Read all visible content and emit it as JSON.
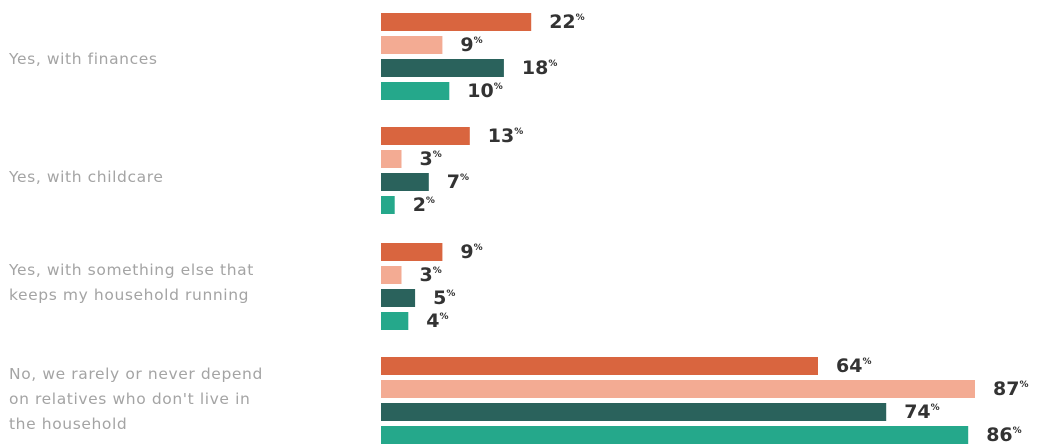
{
  "chart_data": {
    "type": "bar",
    "orientation": "horizontal",
    "categories": [
      [
        "Yes, with finances"
      ],
      [
        "Yes, with childcare"
      ],
      [
        "Yes, with something else that",
        "keeps my household running"
      ],
      [
        "No, we rarely or never depend",
        "on relatives who don't live in",
        "the household"
      ]
    ],
    "series": [
      {
        "color": "#d9653f",
        "values": [
          22,
          13,
          9,
          64
        ]
      },
      {
        "color": "#f3ab93",
        "values": [
          9,
          3,
          3,
          87
        ]
      },
      {
        "color": "#2a625c",
        "values": [
          18,
          7,
          5,
          74
        ]
      },
      {
        "color": "#25a88b",
        "values": [
          10,
          2,
          4,
          86
        ]
      }
    ],
    "value_suffix": "%",
    "xlim": [
      0,
      87
    ],
    "grid": false,
    "legend": "none",
    "title": "",
    "xlabel": "",
    "ylabel": ""
  }
}
